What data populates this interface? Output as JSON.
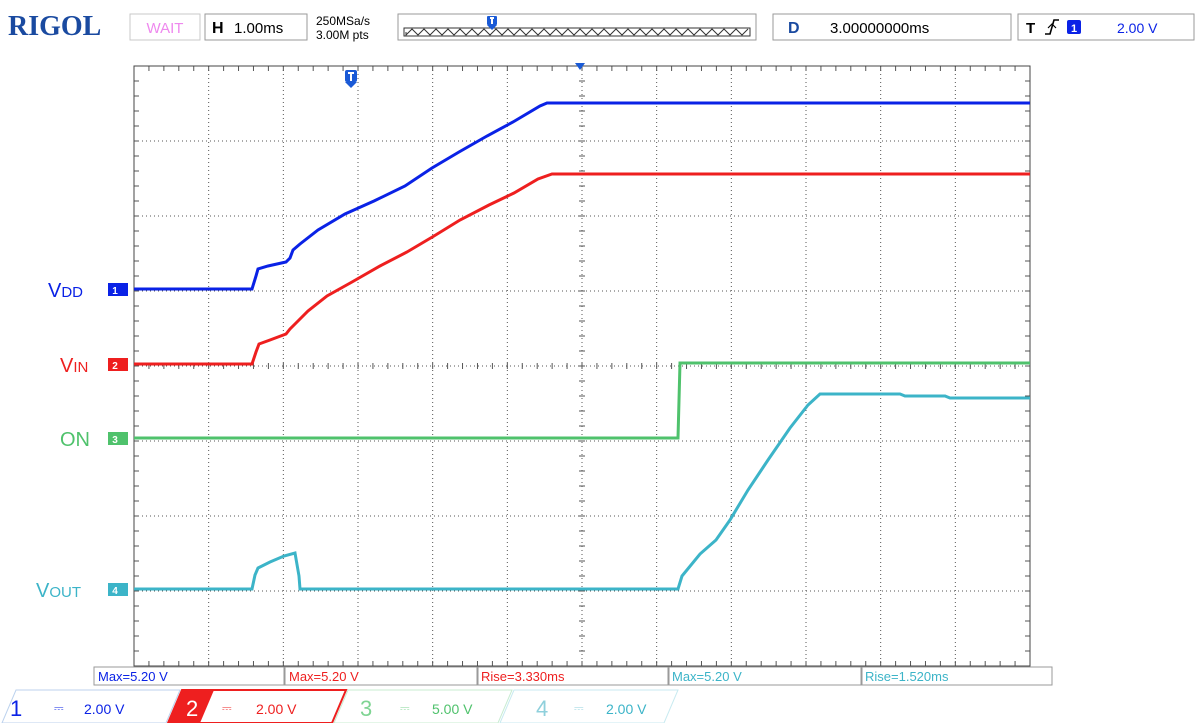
{
  "header": {
    "brand": "RIGOL",
    "run_status": "WAIT",
    "horizontal_label": "H",
    "timebase": "1.00ms",
    "sample_rate": "250MSa/s",
    "memory_depth": "3.00M pts",
    "delay_label": "D",
    "delay_value": "3.00000000ms",
    "trigger_label": "T",
    "trigger_source": "1",
    "trigger_level": "2.00 V"
  },
  "trace_labels": [
    {
      "main": "V",
      "sub": "DD",
      "marker": "1"
    },
    {
      "main": "V",
      "sub": "IN",
      "marker": "2"
    },
    {
      "main": "ON",
      "sub": "",
      "marker": "3"
    },
    {
      "main": "V",
      "sub": "OUT",
      "marker": "4"
    }
  ],
  "measurements": [
    "Max=5.20 V",
    "Max=5.20 V",
    "Rise=3.330ms",
    "Max=5.20 V",
    "Rise=1.520ms"
  ],
  "channels": [
    {
      "number": "1",
      "coupling": "⎓",
      "scale": "2.00 V"
    },
    {
      "number": "2",
      "coupling": "⎓",
      "scale": "2.00 V"
    },
    {
      "number": "3",
      "coupling": "⎓",
      "scale": "5.00 V"
    },
    {
      "number": "4",
      "coupling": "⎓",
      "scale": "2.00 V"
    }
  ],
  "colors": {
    "ch1": "#0a22e6",
    "ch2": "#ee1f1f",
    "ch3": "#4fc26c",
    "ch4": "#3cb4c8",
    "brand": "#1a4aa0",
    "grid": "#555555"
  },
  "icons": {
    "trigger_marker": "trigger-position-icon",
    "trigger_edge": "rising-edge-icon"
  }
}
